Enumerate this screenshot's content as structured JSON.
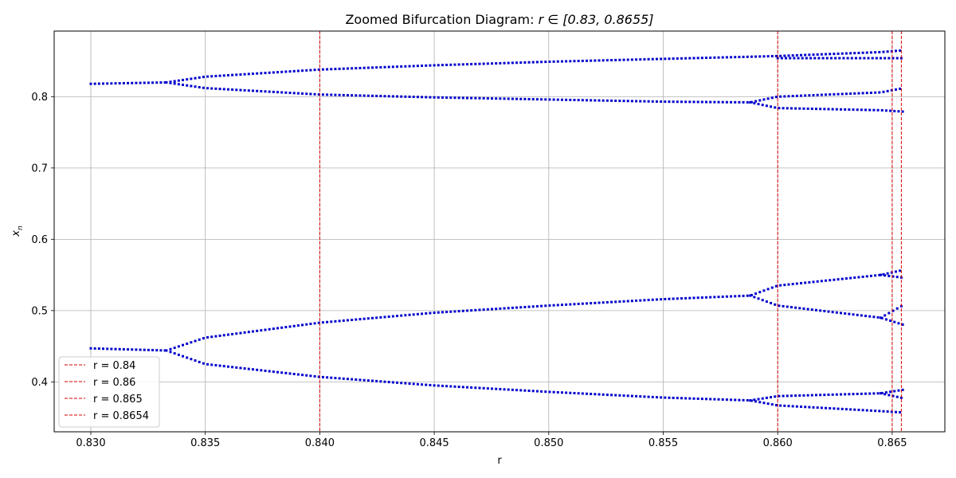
{
  "chart_data": {
    "type": "scatter",
    "title_prefix": "Zoomed Bifurcation Diagram: ",
    "title_math": "r ∈ [0.83, 0.8655]",
    "xlabel": "r",
    "ylabel_main": "x",
    "ylabel_sub": "n",
    "xlim": [
      0.8284,
      0.8673
    ],
    "ylim": [
      0.33,
      0.892
    ],
    "grid": true,
    "legend_position": "lower-left",
    "point_color": "#0000cc",
    "xticks": [
      {
        "value": 0.83,
        "label": "0.830"
      },
      {
        "value": 0.835,
        "label": "0.835"
      },
      {
        "value": 0.84,
        "label": "0.840"
      },
      {
        "value": 0.845,
        "label": "0.845"
      },
      {
        "value": 0.85,
        "label": "0.850"
      },
      {
        "value": 0.855,
        "label": "0.855"
      },
      {
        "value": 0.86,
        "label": "0.860"
      },
      {
        "value": 0.865,
        "label": "0.865"
      }
    ],
    "yticks": [
      {
        "value": 0.4,
        "label": "0.4"
      },
      {
        "value": 0.5,
        "label": "0.5"
      },
      {
        "value": 0.6,
        "label": "0.6"
      },
      {
        "value": 0.7,
        "label": "0.7"
      },
      {
        "value": 0.8,
        "label": "0.8"
      }
    ],
    "reference_lines": [
      {
        "value": 0.84,
        "label": "r = 0.84",
        "color": "#dd0000"
      },
      {
        "value": 0.86,
        "label": "r = 0.86",
        "color": "#dd0000"
      },
      {
        "value": 0.865,
        "label": "r = 0.865",
        "color": "#dd0000"
      },
      {
        "value": 0.8654,
        "label": "r = 0.8654",
        "color": "#dd0000"
      }
    ],
    "branches": [
      {
        "r": [
          0.83,
          0.8333
        ],
        "x": [
          0.818,
          0.82
        ]
      },
      {
        "r": [
          0.8333,
          0.835,
          0.84,
          0.845,
          0.85,
          0.855,
          0.8588,
          0.86,
          0.8645,
          0.8655
        ],
        "x": [
          0.82,
          0.828,
          0.838,
          0.844,
          0.849,
          0.853,
          0.856,
          0.857,
          0.8625,
          0.865
        ]
      },
      {
        "r": [
          0.8333,
          0.835,
          0.84,
          0.845,
          0.85,
          0.855,
          0.8588,
          0.86,
          0.8645,
          0.8655
        ],
        "x": [
          0.82,
          0.812,
          0.803,
          0.799,
          0.796,
          0.793,
          0.792,
          0.8,
          0.806,
          0.812
        ]
      },
      {
        "r": [
          0.8588,
          0.86,
          0.8645,
          0.8655
        ],
        "x": [
          0.792,
          0.784,
          0.781,
          0.779
        ]
      },
      {
        "r": [
          0.86,
          0.8645,
          0.8655
        ],
        "x": [
          0.854,
          0.854,
          0.854
        ]
      },
      {
        "r": [
          0.83,
          0.8333
        ],
        "x": [
          0.447,
          0.444
        ]
      },
      {
        "r": [
          0.8333,
          0.835,
          0.84,
          0.845,
          0.85,
          0.855,
          0.8588,
          0.86,
          0.8645,
          0.8655
        ],
        "x": [
          0.444,
          0.462,
          0.483,
          0.497,
          0.507,
          0.516,
          0.521,
          0.535,
          0.55,
          0.557
        ]
      },
      {
        "r": [
          0.8588,
          0.86,
          0.8645,
          0.8655
        ],
        "x": [
          0.521,
          0.507,
          0.49,
          0.48
        ]
      },
      {
        "r": [
          0.8645,
          0.8655
        ],
        "x": [
          0.49,
          0.508
        ]
      },
      {
        "r": [
          0.8645,
          0.8655
        ],
        "x": [
          0.55,
          0.546
        ]
      },
      {
        "r": [
          0.8333,
          0.835,
          0.84,
          0.845,
          0.85,
          0.855,
          0.8588,
          0.86,
          0.8645,
          0.8655
        ],
        "x": [
          0.444,
          0.425,
          0.407,
          0.395,
          0.386,
          0.378,
          0.374,
          0.367,
          0.359,
          0.357
        ]
      },
      {
        "r": [
          0.8588,
          0.86,
          0.8645,
          0.8655
        ],
        "x": [
          0.374,
          0.38,
          0.384,
          0.389
        ]
      },
      {
        "r": [
          0.8645,
          0.8655
        ],
        "x": [
          0.384,
          0.377
        ]
      }
    ]
  }
}
